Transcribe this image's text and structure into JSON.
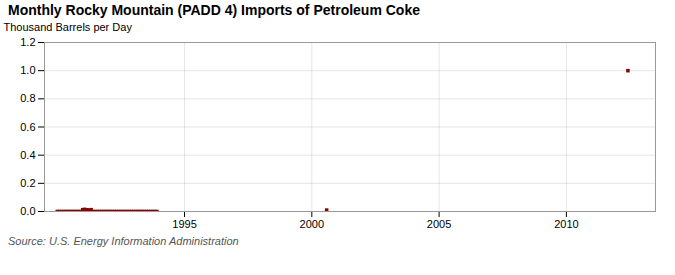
{
  "chart_data": {
    "type": "scatter",
    "title": "Monthly Rocky Mountain (PADD 4) Imports of Petroleum Coke",
    "ylabel": "Thousand Barrels per Day",
    "annotations": [
      "Source: U.S. Energy Information Administration"
    ],
    "color": "#8b0000",
    "marker": "square",
    "grid": true,
    "xlim": [
      1989.5,
      2013.5
    ],
    "xticks": [
      1995,
      2000,
      2005,
      2010
    ],
    "ylim": [
      0.0,
      1.2
    ],
    "yticks": [
      {
        "value": 0.0,
        "label": "0.0"
      },
      0.2,
      0.4,
      0.6,
      0.8,
      {
        "value": 1.0,
        "label": "1.0"
      },
      1.2
    ],
    "x": [
      1990.0,
      1990.083,
      1990.167,
      1990.25,
      1990.333,
      1990.417,
      1990.5,
      1990.583,
      1990.667,
      1990.75,
      1990.833,
      1990.917,
      1991.0,
      1991.083,
      1991.167,
      1991.25,
      1991.333,
      1991.417,
      1991.5,
      1991.583,
      1991.667,
      1991.75,
      1991.833,
      1991.917,
      1992.0,
      1992.083,
      1992.167,
      1992.25,
      1992.333,
      1992.417,
      1992.5,
      1992.583,
      1992.667,
      1992.75,
      1992.833,
      1992.917,
      1993.0,
      1993.083,
      1993.167,
      1993.25,
      1993.333,
      1993.417,
      1993.5,
      1993.583,
      1993.667,
      1993.75,
      1993.833,
      1993.917,
      2000.583,
      2012.417
    ],
    "values": [
      0.0,
      0.0,
      0.0,
      0.0,
      0.0,
      0.0,
      0.0,
      0.0,
      0.0,
      0.0,
      0.0,
      0.0,
      0.013,
      0.015,
      0.012,
      0.01,
      0.013,
      0.0,
      0.0,
      0.0,
      0.0,
      0.0,
      0.0,
      0.0,
      0.0,
      0.0,
      0.0,
      0.0,
      0.0,
      0.0,
      0.0,
      0.0,
      0.0,
      0.0,
      0.0,
      0.0,
      0.0,
      0.0,
      0.0,
      0.0,
      0.0,
      0.0,
      0.0,
      0.0,
      0.0,
      0.0,
      0.0,
      0.0,
      0.01,
      1.0
    ]
  }
}
